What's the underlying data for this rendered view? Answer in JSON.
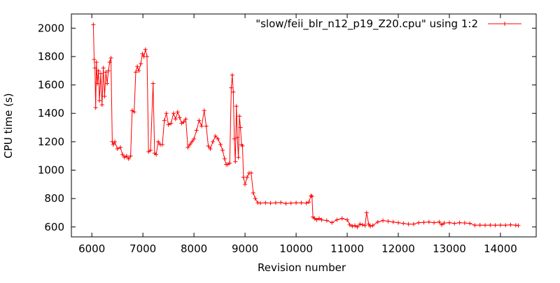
{
  "chart_data": {
    "type": "line",
    "title": "",
    "xlabel": "Revision number",
    "ylabel": "CPU time (s)",
    "xlim": [
      5600,
      14700
    ],
    "ylim": [
      530,
      2100
    ],
    "xticks": [
      6000,
      7000,
      8000,
      9000,
      10000,
      11000,
      12000,
      13000,
      14000
    ],
    "yticks": [
      600,
      800,
      1000,
      1200,
      1400,
      1600,
      1800,
      2000
    ],
    "grid": false,
    "legend_position": "top-right",
    "series": [
      {
        "name": "\"slow/feii_blr_n12_p19_Z20.cpu\" using 1:2",
        "color": "#ff0000",
        "marker": "plus",
        "points": [
          [
            6030,
            2025
          ],
          [
            6045,
            1780
          ],
          [
            6060,
            1720
          ],
          [
            6075,
            1440
          ],
          [
            6090,
            1760
          ],
          [
            6110,
            1610
          ],
          [
            6130,
            1700
          ],
          [
            6150,
            1490
          ],
          [
            6175,
            1680
          ],
          [
            6200,
            1460
          ],
          [
            6225,
            1720
          ],
          [
            6250,
            1520
          ],
          [
            6275,
            1690
          ],
          [
            6300,
            1610
          ],
          [
            6325,
            1700
          ],
          [
            6350,
            1760
          ],
          [
            6375,
            1790
          ],
          [
            6400,
            1200
          ],
          [
            6420,
            1180
          ],
          [
            6450,
            1200
          ],
          [
            6500,
            1150
          ],
          [
            6560,
            1160
          ],
          [
            6600,
            1110
          ],
          [
            6640,
            1090
          ],
          [
            6680,
            1100
          ],
          [
            6720,
            1080
          ],
          [
            6760,
            1100
          ],
          [
            6790,
            1420
          ],
          [
            6830,
            1410
          ],
          [
            6860,
            1690
          ],
          [
            6890,
            1730
          ],
          [
            6920,
            1700
          ],
          [
            6960,
            1750
          ],
          [
            6990,
            1820
          ],
          [
            7020,
            1800
          ],
          [
            7050,
            1850
          ],
          [
            7080,
            1800
          ],
          [
            7110,
            1130
          ],
          [
            7150,
            1140
          ],
          [
            7200,
            1610
          ],
          [
            7230,
            1120
          ],
          [
            7260,
            1110
          ],
          [
            7300,
            1200
          ],
          [
            7340,
            1180
          ],
          [
            7380,
            1180
          ],
          [
            7420,
            1350
          ],
          [
            7460,
            1400
          ],
          [
            7500,
            1320
          ],
          [
            7550,
            1330
          ],
          [
            7600,
            1400
          ],
          [
            7640,
            1360
          ],
          [
            7680,
            1410
          ],
          [
            7720,
            1370
          ],
          [
            7760,
            1330
          ],
          [
            7800,
            1340
          ],
          [
            7840,
            1360
          ],
          [
            7880,
            1160
          ],
          [
            7920,
            1180
          ],
          [
            7960,
            1200
          ],
          [
            8000,
            1220
          ],
          [
            8050,
            1280
          ],
          [
            8100,
            1350
          ],
          [
            8150,
            1310
          ],
          [
            8200,
            1420
          ],
          [
            8240,
            1310
          ],
          [
            8280,
            1170
          ],
          [
            8320,
            1150
          ],
          [
            8370,
            1200
          ],
          [
            8420,
            1240
          ],
          [
            8470,
            1220
          ],
          [
            8520,
            1180
          ],
          [
            8560,
            1140
          ],
          [
            8600,
            1080
          ],
          [
            8630,
            1040
          ],
          [
            8660,
            1040
          ],
          [
            8700,
            1050
          ],
          [
            8730,
            1580
          ],
          [
            8750,
            1670
          ],
          [
            8770,
            1550
          ],
          [
            8790,
            1220
          ],
          [
            8810,
            1060
          ],
          [
            8830,
            1450
          ],
          [
            8850,
            1230
          ],
          [
            8870,
            1090
          ],
          [
            8890,
            1380
          ],
          [
            8910,
            1300
          ],
          [
            8930,
            1180
          ],
          [
            8950,
            1170
          ],
          [
            8970,
            950
          ],
          [
            9000,
            900
          ],
          [
            9040,
            950
          ],
          [
            9080,
            980
          ],
          [
            9120,
            980
          ],
          [
            9160,
            840
          ],
          [
            9200,
            800
          ],
          [
            9250,
            770
          ],
          [
            9300,
            768
          ],
          [
            9400,
            770
          ],
          [
            9500,
            768
          ],
          [
            9600,
            770
          ],
          [
            9700,
            772
          ],
          [
            9800,
            765
          ],
          [
            9900,
            768
          ],
          [
            10000,
            770
          ],
          [
            10100,
            770
          ],
          [
            10200,
            768
          ],
          [
            10250,
            775
          ],
          [
            10290,
            820
          ],
          [
            10310,
            815
          ],
          [
            10330,
            670
          ],
          [
            10360,
            660
          ],
          [
            10400,
            650
          ],
          [
            10450,
            660
          ],
          [
            10500,
            650
          ],
          [
            10600,
            645
          ],
          [
            10700,
            630
          ],
          [
            10800,
            650
          ],
          [
            10900,
            660
          ],
          [
            11000,
            650
          ],
          [
            11050,
            615
          ],
          [
            11100,
            605
          ],
          [
            11150,
            610
          ],
          [
            11200,
            600
          ],
          [
            11250,
            620
          ],
          [
            11300,
            615
          ],
          [
            11350,
            610
          ],
          [
            11380,
            700
          ],
          [
            11420,
            620
          ],
          [
            11450,
            605
          ],
          [
            11500,
            610
          ],
          [
            11600,
            635
          ],
          [
            11700,
            645
          ],
          [
            11800,
            640
          ],
          [
            11900,
            635
          ],
          [
            12000,
            630
          ],
          [
            12100,
            625
          ],
          [
            12200,
            620
          ],
          [
            12300,
            620
          ],
          [
            12400,
            630
          ],
          [
            12500,
            632
          ],
          [
            12600,
            635
          ],
          [
            12700,
            630
          ],
          [
            12800,
            635
          ],
          [
            12850,
            615
          ],
          [
            12900,
            628
          ],
          [
            13000,
            630
          ],
          [
            13100,
            625
          ],
          [
            13200,
            630
          ],
          [
            13300,
            628
          ],
          [
            13400,
            625
          ],
          [
            13500,
            612
          ],
          [
            13600,
            613
          ],
          [
            13700,
            612
          ],
          [
            13800,
            613
          ],
          [
            13900,
            612
          ],
          [
            14000,
            613
          ],
          [
            14100,
            612
          ],
          [
            14200,
            615
          ],
          [
            14300,
            612
          ],
          [
            14350,
            610
          ]
        ]
      }
    ]
  }
}
